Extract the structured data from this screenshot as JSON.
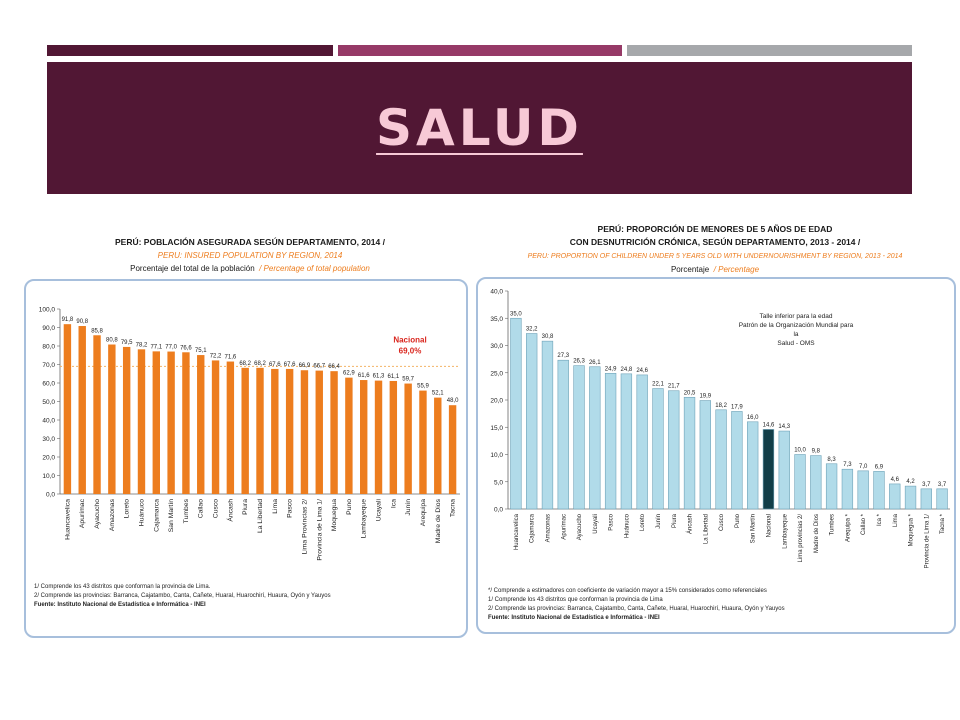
{
  "theme": {
    "maroon": "#511734",
    "magenta": "#963a67",
    "grey": "#a6a8ab",
    "title_color": "#f7c9d6",
    "orange": "#ed7d1e",
    "light_blue": "#b1dbe9",
    "dark_teal": "#123e48",
    "red_label": "#d9241c"
  },
  "slide": {
    "title": "SALUD"
  },
  "left_chart_header": {
    "title_es": "PERÚ: POBLACIÓN ASEGURADA SEGÚN DEPARTAMENTO, 2014 /",
    "title_en": "PERU: INSURED POPULATION BY REGION, 2014",
    "subtitle_es": "Porcentaje del total de la población",
    "subtitle_en": "/ Percentage of total population"
  },
  "right_chart_header": {
    "title_es_1": "PERÚ: PROPORCIÓN DE MENORES DE 5 AÑOS DE EDAD",
    "title_es_2": "CON DESNUTRICIÓN CRÓNICA, SEGÚN DEPARTAMENTO, 2013 - 2014 /",
    "title_en": "PERU: PROPORTION OF CHILDREN UNDER 5 YEARS OLD WITH UNDERNOURISHMENT BY REGION, 2013 - 2014",
    "subtitle_es": "Porcentaje",
    "subtitle_en": "/ Percentage"
  },
  "left_notes": {
    "n1": "1/ Comprende los 43 distritos que conforman la provincia de Lima.",
    "n2": "2/ Comprende las provincias: Barranca, Cajatambo, Canta, Cañete, Huaral, Huarochirí, Huaura, Oyón y Yauyos",
    "source": "Fuente: Instituto Nacional de Estadística e Informática - INEI"
  },
  "right_notes": {
    "n0": "*/ Comprende a estimadores con coeficiente de variación mayor a 15% considerados como referenciales",
    "n1": "1/ Comprende los 43 distritos que conforman la provincia de Lima",
    "n2": "2/ Comprende las provincias: Barranca, Cajatambo, Canta, Cañete, Huaral, Huarochirí, Huaura, Oyón y Yauyos",
    "source": "Fuente: Instituto Nacional de Estadística e Informática - INEI"
  },
  "right_legend_note": {
    "line1": "Talle inferior para la edad",
    "line2": "Patrón  de la Organización Mundial para la",
    "line3": "Salud - OMS"
  },
  "chart_data": [
    {
      "type": "bar",
      "title": "PERÚ: POBLACIÓN ASEGURADA SEGÚN DEPARTAMENTO, 2014",
      "ylim": [
        0,
        100
      ],
      "yticks": [
        "0,0",
        "10,0",
        "20,0",
        "30,0",
        "40,0",
        "50,0",
        "60,0",
        "70,0",
        "80,0",
        "90,0",
        "100,0"
      ],
      "categories": [
        "Huancavelica",
        "Apurímac",
        "Ayacucho",
        "Amazonas",
        "Loreto",
        "Huánuco",
        "Cajamarca",
        "San Martín",
        "Tumbes",
        "Callao",
        "Cusco",
        "Áncash",
        "Piura",
        "La Libertad",
        "Lima",
        "Pasco",
        "Lima Provincias 2/",
        "Provincia de Lima 1/",
        "Moquegua",
        "Puno",
        "Lambayeque",
        "Ucayali",
        "Ica",
        "Junín",
        "Arequipa",
        "Madre de Dios",
        "Tacna"
      ],
      "values": [
        91.8,
        90.8,
        85.8,
        80.8,
        79.5,
        78.2,
        77.1,
        77.0,
        76.6,
        75.1,
        72.2,
        71.6,
        68.2,
        68.2,
        67.6,
        67.6,
        66.9,
        66.7,
        66.4,
        62.9,
        61.6,
        61.3,
        61.1,
        59.7,
        55.9,
        52.1,
        48.0
      ],
      "labels": [
        "91,8",
        "90,8",
        "85,8",
        "80,8",
        "79,5",
        "78,2",
        "77,1",
        "77,0",
        "76,6",
        "75,1",
        "72,2",
        "71,6",
        "68,2",
        "68,2",
        "67,6",
        "67,6",
        "66,9",
        "66,7",
        "66,4",
        "62,9",
        "61,6",
        "61,3",
        "61,1",
        "59,7",
        "55,9",
        "52,1",
        "48,0"
      ],
      "reference": {
        "name": "Nacional",
        "value": 69.0,
        "label": "69,0%"
      }
    },
    {
      "type": "bar",
      "title": "PERÚ: PROPORCIÓN DE MENORES DE 5 AÑOS DE EDAD CON DESNUTRICIÓN CRÓNICA, SEGÚN DEPARTAMENTO, 2013 - 2014",
      "ylabel": "Porcentaje",
      "ylim": [
        0,
        40
      ],
      "yticks": [
        "0,0",
        "5,0",
        "10,0",
        "15,0",
        "20,0",
        "25,0",
        "30,0",
        "35,0",
        "40,0"
      ],
      "categories": [
        "Huancavelica",
        "Cajamarca",
        "Amazonas",
        "Apurímac",
        "Ayacucho",
        "Ucayali",
        "Pasco",
        "Huánuco",
        "Loreto",
        "Junín",
        "Piura",
        "Áncash",
        "La Libertad",
        "Cusco",
        "Puno",
        "San Martín",
        "Nacional",
        "Lambayeque",
        "Lima provincias 2/",
        "Madre de Dios",
        "Tumbes",
        "Arequipa *",
        "Callao *",
        "Ica *",
        "Lima",
        "Moquegua *",
        "Provincia de Lima 1/",
        "Tacna *"
      ],
      "values": [
        35.0,
        32.2,
        30.8,
        27.3,
        26.3,
        26.1,
        24.9,
        24.8,
        24.6,
        22.1,
        21.7,
        20.5,
        19.9,
        18.2,
        17.9,
        16.0,
        14.6,
        14.3,
        10.0,
        9.8,
        8.3,
        7.3,
        7.0,
        6.9,
        4.6,
        4.2,
        3.7,
        3.7
      ],
      "labels": [
        "35,0",
        "32,2",
        "30,8",
        "27,3",
        "26,3",
        "26,1",
        "24,9",
        "24,8",
        "24,6",
        "22,1",
        "21,7",
        "20,5",
        "19,9",
        "18,2",
        "17,9",
        "16,0",
        "14,6",
        "14,3",
        "10,0",
        "9,8",
        "8,3",
        "7,3",
        "7,0",
        "6,9",
        "4,6",
        "4,2",
        "3,7",
        "3,7"
      ],
      "highlight": "Nacional"
    }
  ]
}
